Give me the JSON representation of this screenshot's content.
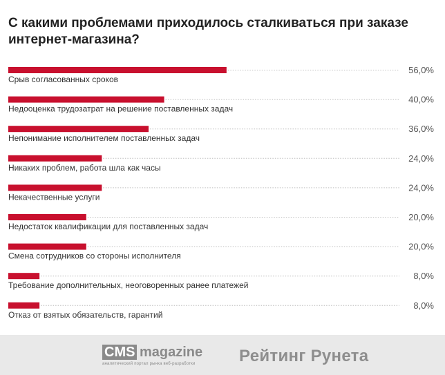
{
  "title": "С какими проблемами приходилось сталкиваться при заказе\nинтернет-магазина?",
  "chart_data": {
    "type": "bar",
    "orientation": "horizontal",
    "bar_color": "#c8102e",
    "categories": [
      "Срыв согласованных сроков",
      "Недооценка трудозатрат на решение поставленных задач",
      "Непонимание исполнителем поставленных задач",
      "Никаких проблем, работа шла как часы",
      "Некачественные услуги",
      "Недостаток квалификации для поставленных задач",
      "Смена сотрудников со стороны исполнителя",
      "Требование дополнительных, неоговоренных ранее платежей",
      "Отказ от взятых обязательств, гарантий"
    ],
    "values": [
      56.0,
      40.0,
      36.0,
      24.0,
      24.0,
      20.0,
      20.0,
      8.0,
      8.0
    ],
    "value_labels": [
      "56,0%",
      "40,0%",
      "36,0%",
      "24,0%",
      "24,0%",
      "20,0%",
      "20,0%",
      "8,0%",
      "8,0%"
    ]
  },
  "footer": {
    "cms_logo": "CMS",
    "cms_logo_suffix": "magazine",
    "cms_tagline": "аналитический портал рынка веб-разработки",
    "runet_logo": "Рейтинг Рунета"
  }
}
